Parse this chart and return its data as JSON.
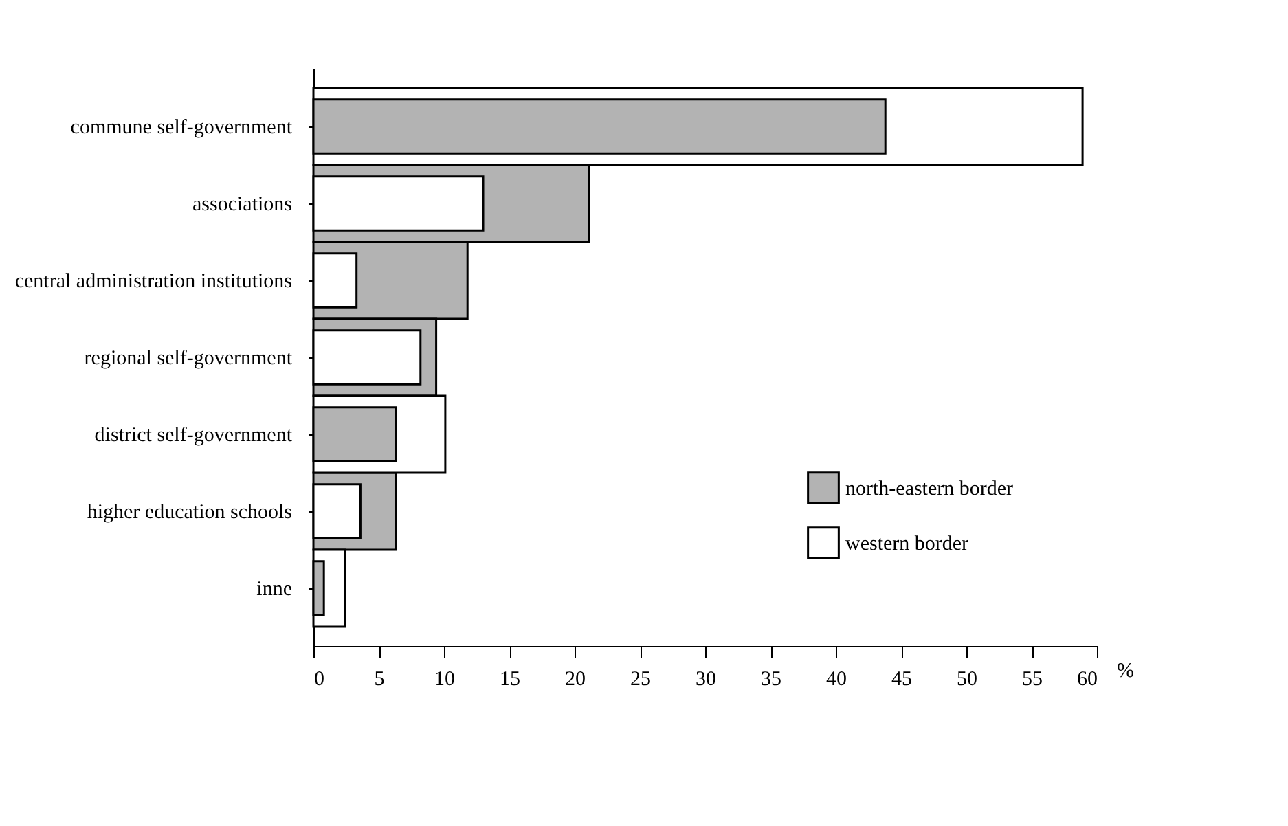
{
  "chart_data": {
    "type": "bar",
    "orientation": "horizontal",
    "xlabel": "%",
    "categories": [
      "commune self-government",
      "associations",
      "central administration institutions",
      "regional self-government",
      "district self-government",
      "higher education schools",
      "inne"
    ],
    "series": [
      {
        "name": "north-eastern border",
        "color": "#b3b3b3",
        "values": [
          43.8,
          21.1,
          11.8,
          9.4,
          6.3,
          6.3,
          0.8
        ]
      },
      {
        "name": "western border",
        "color": "#ffffff",
        "values": [
          58.9,
          13.0,
          3.3,
          8.2,
          10.1,
          3.6,
          2.4
        ]
      }
    ],
    "xlim": [
      0,
      60
    ],
    "xticks": [
      0,
      5,
      10,
      15,
      20,
      25,
      30,
      35,
      40,
      45,
      50,
      55,
      60
    ],
    "grid": false,
    "legend": "bottom right"
  }
}
